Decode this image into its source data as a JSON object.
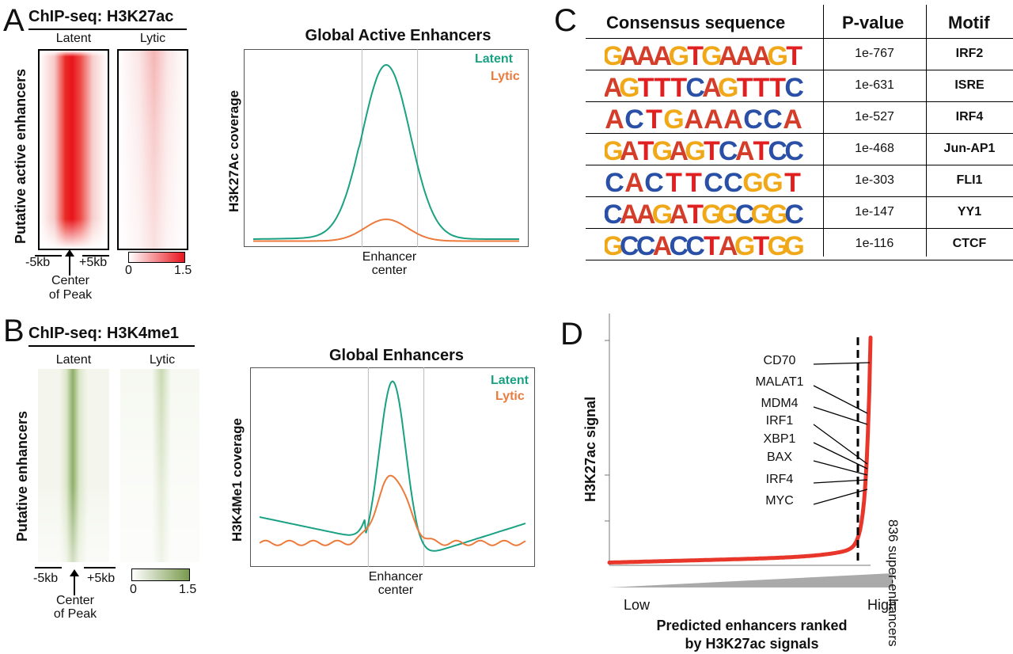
{
  "panelA": {
    "letter": "A",
    "chip_title": "ChIP-seq: H3K27ac",
    "col_latent": "Latent",
    "col_lytic": "Lytic",
    "ylabel": "Putative active enhancers",
    "left_tick": "-5kb",
    "right_tick": "+5kb",
    "center_label_1": "Center",
    "center_label_2": "of Peak",
    "scale_min": "0",
    "scale_max": "1.5",
    "heat_color": "#e8141c",
    "plot": {
      "title": "Global Active Enhancers",
      "ylabel": "H3K27Ac coverage",
      "xlabel_1": "Enhancer",
      "xlabel_2": "center",
      "legend_latent": "Latent",
      "legend_lytic": "Lytic"
    }
  },
  "panelB": {
    "letter": "B",
    "chip_title": "ChIP-seq: H3K4me1",
    "col_latent": "Latent",
    "col_lytic": "Lytic",
    "ylabel": "Putative enhancers",
    "left_tick": "-5kb",
    "right_tick": "+5kb",
    "center_label_1": "Center",
    "center_label_2": "of Peak",
    "scale_min": "0",
    "scale_max": "1.5",
    "heat_color": "#7a9a4e",
    "plot": {
      "title": "Global Enhancers",
      "ylabel": "H3K4Me1 coverage",
      "xlabel_1": "Enhancer",
      "xlabel_2": "center",
      "legend_latent": "Latent",
      "legend_lytic": "Lytic"
    }
  },
  "panelC": {
    "letter": "C",
    "headers": {
      "sequence": "Consensus sequence",
      "pvalue": "P-value",
      "motif": "Motif"
    },
    "rows": [
      {
        "logo": "GAAAGTGAAAGT",
        "pvalue": "1e-767",
        "motif": "IRF2"
      },
      {
        "logo": "AGTTTCAGTTTC",
        "pvalue": "1e-631",
        "motif": "ISRE"
      },
      {
        "logo": "ACTGAAACCA",
        "pvalue": "1e-527",
        "motif": "IRF4"
      },
      {
        "logo": "GATGAGTCATCC",
        "pvalue": "1e-468",
        "motif": "Jun-AP1"
      },
      {
        "logo": "CACTTCCGGT",
        "pvalue": "1e-303",
        "motif": "FLI1"
      },
      {
        "logo": "CAAGATGGCGGC",
        "pvalue": "1e-147",
        "motif": "YY1"
      },
      {
        "logo": "GCCACCTAGTGG",
        "pvalue": "1e-116",
        "motif": "CTCF"
      }
    ]
  },
  "panelD": {
    "letter": "D",
    "ylabel": "H3K27ac signal",
    "xlabel_1": "Predicted enhancers ranked",
    "xlabel_2": "by H3K27ac signals",
    "low": "Low",
    "high": "High",
    "super_label": "836 super-enhancers",
    "genes": [
      "CD70",
      "MALAT1",
      "MDM4",
      "IRF1",
      "XBP1",
      "BAX",
      "IRF4",
      "MYC"
    ],
    "curve_color": "#e8372a"
  },
  "colors": {
    "latent": "#1aa183",
    "lytic": "#ec7a3b",
    "base_A": "#d43d2a",
    "base_C": "#2a4fa6",
    "base_G": "#f0a818",
    "base_T": "#e02020"
  }
}
